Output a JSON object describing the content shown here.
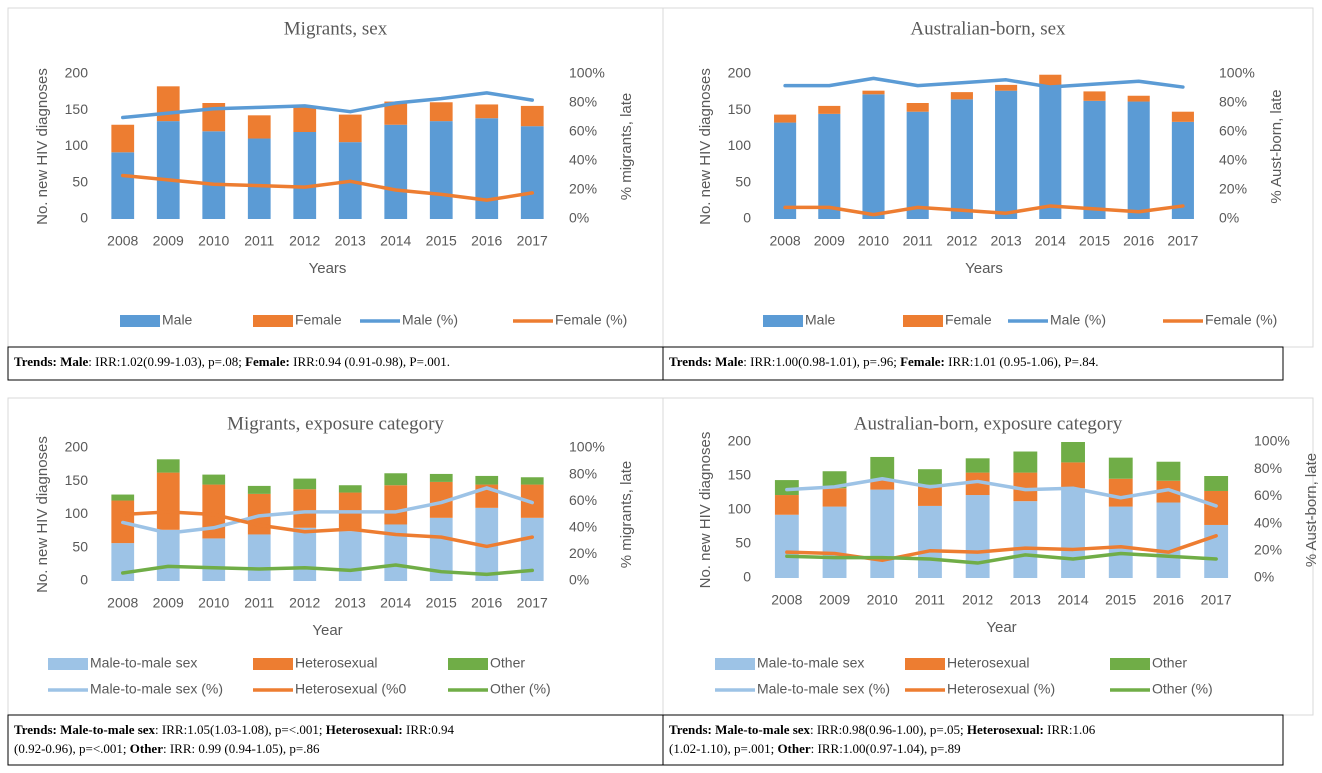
{
  "chart_data": [
    {
      "type": "bar",
      "title": "Migrants, sex",
      "x_label": "Years",
      "y_label": "No. new HIV diagnoses",
      "y2_label": "% migrants, late",
      "categories": [
        "2008",
        "2009",
        "2010",
        "2011",
        "2012",
        "2013",
        "2014",
        "2015",
        "2016",
        "2017"
      ],
      "ylim": [
        0,
        200
      ],
      "yticks": [
        0,
        50,
        100,
        150,
        200
      ],
      "y2lim": [
        0,
        100
      ],
      "y2ticks": [
        {
          "value": 0,
          "label": "0%"
        },
        {
          "value": 20,
          "label": "20%"
        },
        {
          "value": 40,
          "label": "40%"
        },
        {
          "value": 60,
          "label": "60%"
        },
        {
          "value": 80,
          "label": "80%"
        },
        {
          "value": 100,
          "label": "100%"
        }
      ],
      "series": [
        {
          "name": "Male",
          "type": "bar",
          "color": "#5b9bd5",
          "values": [
            92,
            135,
            121,
            111,
            120,
            106,
            130,
            135,
            139,
            128
          ]
        },
        {
          "name": "Female",
          "type": "bar",
          "color": "#ed7d31",
          "values": [
            38,
            48,
            39,
            32,
            34,
            38,
            32,
            26,
            19,
            28
          ]
        },
        {
          "name": "Male (%)",
          "type": "line",
          "axis": "y2",
          "color": "#5b9bd5",
          "values": [
            70,
            73,
            76,
            77,
            78,
            74,
            80,
            83,
            87,
            82
          ]
        },
        {
          "name": "Female (%)",
          "type": "line",
          "axis": "y2",
          "color": "#ed7d31",
          "values": [
            30,
            27,
            24,
            23,
            22,
            26,
            20,
            17,
            13,
            18
          ]
        }
      ],
      "annotation": [
        [
          {
            "text": "Trends: Male",
            "bold": true
          },
          {
            "text": ": IRR:1.02(0.99-1.03), p=.08; "
          },
          {
            "text": "Female:",
            "bold": true
          },
          {
            "text": " IRR:0.94 (0.91-0.98), P=.001."
          }
        ]
      ]
    },
    {
      "type": "bar",
      "title": "Australian-born, sex",
      "x_label": "Years",
      "y_label": "No. new HIV diagnoses",
      "y2_label": "% Aust-born, late",
      "categories": [
        "2008",
        "2009",
        "2010",
        "2011",
        "2012",
        "2013",
        "2014",
        "2015",
        "2016",
        "2017"
      ],
      "ylim": [
        0,
        200
      ],
      "yticks": [
        0,
        50,
        100,
        150,
        200
      ],
      "y2lim": [
        0,
        100
      ],
      "y2ticks": [
        {
          "value": 0,
          "label": "0%"
        },
        {
          "value": 20,
          "label": "20%"
        },
        {
          "value": 40,
          "label": "40%"
        },
        {
          "value": 60,
          "label": "60%"
        },
        {
          "value": 80,
          "label": "80%"
        },
        {
          "value": 100,
          "label": "100%"
        }
      ],
      "series": [
        {
          "name": "Male",
          "type": "bar",
          "color": "#5b9bd5",
          "values": [
            133,
            145,
            172,
            148,
            165,
            177,
            184,
            163,
            162,
            134
          ]
        },
        {
          "name": "Female",
          "type": "bar",
          "color": "#ed7d31",
          "values": [
            11,
            11,
            5,
            12,
            10,
            8,
            15,
            13,
            8,
            14
          ]
        },
        {
          "name": "Male (%)",
          "type": "line",
          "axis": "y2",
          "color": "#5b9bd5",
          "values": [
            92,
            92,
            97,
            92,
            94,
            96,
            91,
            93,
            95,
            91
          ]
        },
        {
          "name": "Female (%)",
          "type": "line",
          "axis": "y2",
          "color": "#ed7d31",
          "values": [
            8,
            8,
            3,
            8,
            6,
            4,
            9,
            7,
            5,
            9
          ]
        }
      ],
      "annotation": [
        [
          {
            "text": "Trends: Male",
            "bold": true
          },
          {
            "text": ": IRR:1.00(0.98-1.01), p=.96; "
          },
          {
            "text": "Female:",
            "bold": true
          },
          {
            "text": " IRR:1.01 (0.95-1.06), P=.84."
          }
        ]
      ]
    },
    {
      "type": "bar",
      "title": "Migrants, exposure category",
      "x_label": "Year",
      "y_label": "No. new HIV diagnoses",
      "y2_label": "% migrants, late",
      "categories": [
        "2008",
        "2009",
        "2010",
        "2011",
        "2012",
        "2013",
        "2014",
        "2015",
        "2016",
        "2017"
      ],
      "ylim": [
        0,
        200
      ],
      "yticks": [
        0,
        50,
        100,
        150,
        200
      ],
      "y2lim": [
        0,
        100
      ],
      "y2ticks": [
        {
          "value": 0,
          "label": "0%"
        },
        {
          "value": 20,
          "label": "20%"
        },
        {
          "value": 40,
          "label": "40%"
        },
        {
          "value": 60,
          "label": "60%"
        },
        {
          "value": 80,
          "label": "80%"
        },
        {
          "value": 100,
          "label": "100%"
        }
      ],
      "series": [
        {
          "name": "Male-to-male sex",
          "type": "bar",
          "color": "#9dc3e6",
          "values": [
            57,
            77,
            64,
            70,
            80,
            75,
            85,
            95,
            110,
            95
          ]
        },
        {
          "name": "Heterosexual",
          "type": "bar",
          "color": "#ed7d31",
          "values": [
            64,
            86,
            81,
            61,
            58,
            58,
            59,
            54,
            35,
            50
          ]
        },
        {
          "name": "Other",
          "type": "bar",
          "color": "#70ad47",
          "values": [
            9,
            20,
            15,
            12,
            16,
            11,
            18,
            12,
            13,
            11
          ]
        },
        {
          "name": "Male-to-male sex (%)",
          "type": "line",
          "axis": "y2",
          "color": "#9dc3e6",
          "values": [
            44,
            36,
            40,
            49,
            52,
            52,
            52,
            59,
            70,
            59
          ]
        },
        {
          "name": "Heterosexual (%0",
          "type": "line",
          "axis": "y2",
          "color": "#ed7d31",
          "values": [
            50,
            52,
            50,
            42,
            37,
            39,
            35,
            33,
            26,
            33
          ]
        },
        {
          "name": "Other (%)",
          "type": "line",
          "axis": "y2",
          "color": "#70ad47",
          "values": [
            6,
            11,
            10,
            9,
            10,
            8,
            12,
            7,
            5,
            8
          ]
        }
      ],
      "annotation": [
        [
          {
            "text": "Trends: Male-to-male sex",
            "bold": true
          },
          {
            "text": ": IRR:1.05(1.03-1.08), p=<.001; "
          },
          {
            "text": "Heterosexual:",
            "bold": true
          },
          {
            "text": " IRR:0.94"
          }
        ],
        [
          {
            "text": "(0.92-0.96), p=<.001; "
          },
          {
            "text": "Other",
            "bold": true
          },
          {
            "text": ": IRR: 0.99 (0.94-1.05), p=.86"
          }
        ]
      ]
    },
    {
      "type": "bar",
      "title": "Australian-born, exposure category",
      "x_label": "Year",
      "y_label": "No. new HIV diagnoses",
      "y2_label": "% Aust-born, late",
      "categories": [
        "2008",
        "2009",
        "2010",
        "2011",
        "2012",
        "2013",
        "2014",
        "2015",
        "2016",
        "2017"
      ],
      "ylim": [
        0,
        200
      ],
      "yticks": [
        0,
        50,
        100,
        150,
        200
      ],
      "y2lim": [
        0,
        100
      ],
      "y2ticks": [
        {
          "value": 0,
          "label": "0%"
        },
        {
          "value": 20,
          "label": "20%"
        },
        {
          "value": 40,
          "label": "40%"
        },
        {
          "value": 60,
          "label": "60%"
        },
        {
          "value": 80,
          "label": "80%"
        },
        {
          "value": 100,
          "label": "100%"
        }
      ],
      "series": [
        {
          "name": "Male-to-male sex",
          "type": "bar",
          "color": "#9dc3e6",
          "values": [
            93,
            105,
            130,
            106,
            122,
            113,
            132,
            105,
            111,
            78
          ]
        },
        {
          "name": "Heterosexual",
          "type": "bar",
          "color": "#ed7d31",
          "values": [
            29,
            27,
            15,
            31,
            33,
            42,
            38,
            41,
            32,
            50
          ]
        },
        {
          "name": "Other",
          "type": "bar",
          "color": "#70ad47",
          "values": [
            22,
            25,
            33,
            23,
            21,
            31,
            30,
            31,
            28,
            22
          ]
        },
        {
          "name": "Male-to-male sex (%)",
          "type": "line",
          "axis": "y2",
          "color": "#9dc3e6",
          "values": [
            65,
            67,
            73,
            67,
            71,
            65,
            66,
            59,
            65,
            53
          ]
        },
        {
          "name": "Heterosexual (%)",
          "type": "line",
          "axis": "y2",
          "color": "#ed7d31",
          "values": [
            19,
            18,
            13,
            20,
            19,
            22,
            21,
            23,
            19,
            31
          ]
        },
        {
          "name": "Other (%)",
          "type": "line",
          "axis": "y2",
          "color": "#70ad47",
          "values": [
            16,
            15,
            15,
            14,
            11,
            17,
            14,
            18,
            16,
            14
          ]
        }
      ],
      "annotation": [
        [
          {
            "text": "Trends: Male-to-male sex",
            "bold": true
          },
          {
            "text": ": IRR:0.98(0.96-1.00), p=.05; "
          },
          {
            "text": "Heterosexual:",
            "bold": true
          },
          {
            "text": " IRR:1.06"
          }
        ],
        [
          {
            "text": "(1.02-1.10), p=.001; "
          },
          {
            "text": "Other",
            "bold": true
          },
          {
            "text": ": IRR:1.00(0.97-1.04), p=.89"
          }
        ]
      ]
    }
  ]
}
